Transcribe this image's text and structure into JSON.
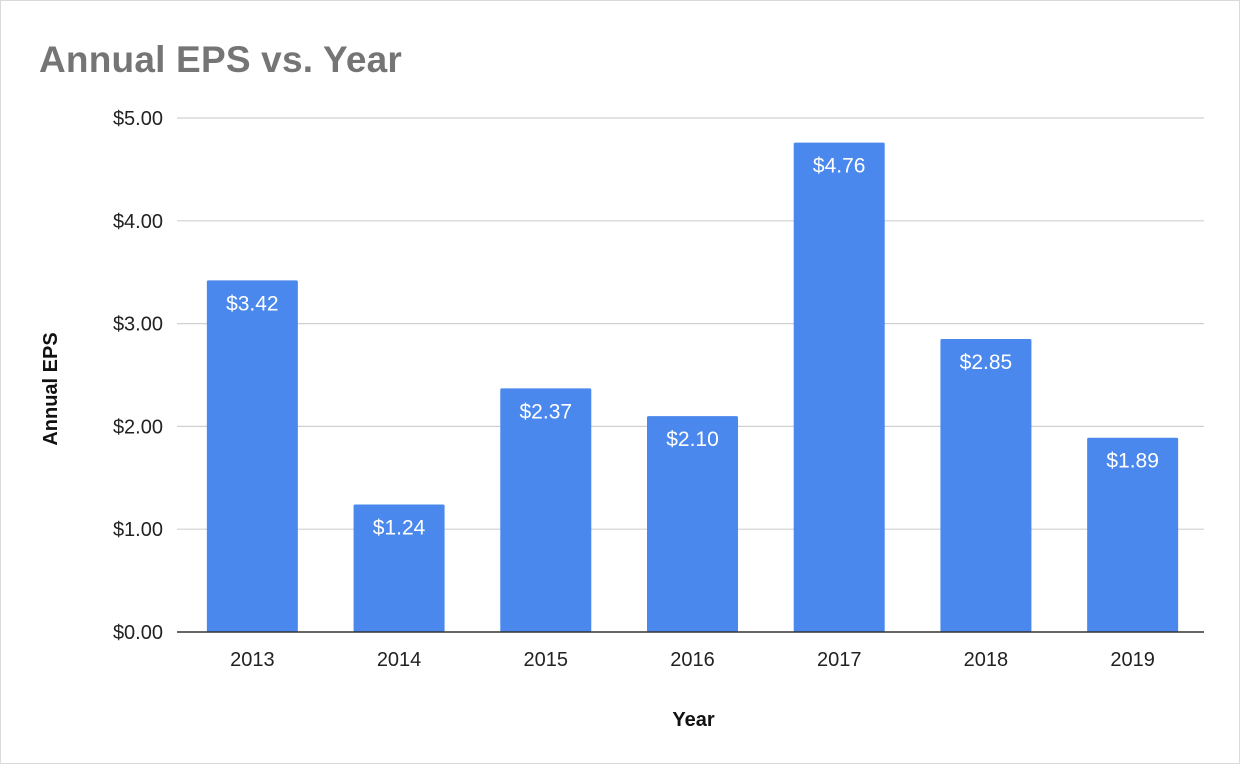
{
  "chart_data": {
    "type": "bar",
    "title": "Annual EPS vs. Year",
    "xlabel": "Year",
    "ylabel": "Annual EPS",
    "categories": [
      "2013",
      "2014",
      "2015",
      "2016",
      "2017",
      "2018",
      "2019"
    ],
    "values": [
      3.42,
      1.24,
      2.37,
      2.1,
      4.76,
      2.85,
      1.89
    ],
    "data_labels": [
      "$3.42",
      "$1.24",
      "$2.37",
      "$2.10",
      "$4.76",
      "$2.85",
      "$1.89"
    ],
    "y_ticks": [
      0,
      1,
      2,
      3,
      4,
      5
    ],
    "y_tick_labels": [
      "$0.00",
      "$1.00",
      "$2.00",
      "$3.00",
      "$4.00",
      "$5.00"
    ],
    "ylim": [
      0,
      5
    ],
    "grid": true,
    "legend": "none",
    "colors": {
      "bar": "#4a88ee",
      "gridline": "#d0d0d0",
      "axis_line": "#333333",
      "title": "#757575"
    }
  }
}
